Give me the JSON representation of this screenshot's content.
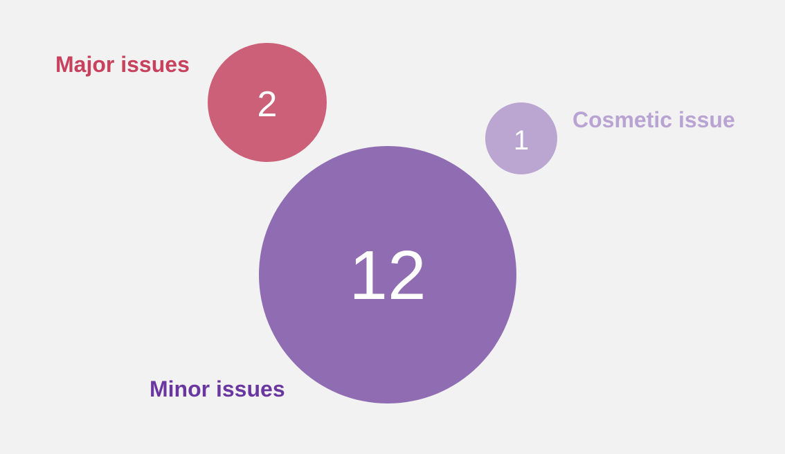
{
  "chart_data": {
    "type": "bubble",
    "title": "",
    "legend": "none",
    "grid": false,
    "series": [
      {
        "name": "Major issues",
        "value": 2,
        "color": "#cc6078",
        "label_color": "#c8415d"
      },
      {
        "name": "Cosmetic issue",
        "value": 1,
        "color": "#bba5d1",
        "label_color": "#b9a3d2"
      },
      {
        "name": "Minor issues",
        "value": 12,
        "color": "#906db3",
        "label_color": "#6a37a1"
      }
    ]
  }
}
